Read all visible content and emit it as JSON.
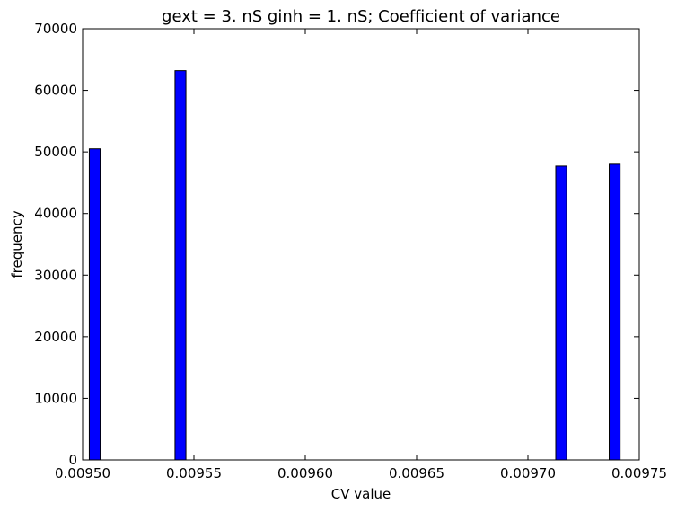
{
  "chart_data": {
    "type": "bar",
    "title": "gext = 3. nS ginh = 1. nS; Coefficient of variance",
    "xlabel": "CV value",
    "ylabel": "frequency",
    "xlim": [
      0.0095,
      0.00975
    ],
    "ylim": [
      0,
      70000
    ],
    "x_ticks": [
      "0.00950",
      "0.00955",
      "0.00960",
      "0.00965",
      "0.00970",
      "0.00975"
    ],
    "y_ticks": [
      "0",
      "10000",
      "20000",
      "30000",
      "40000",
      "50000",
      "60000",
      "70000"
    ],
    "bar_width": 4.9e-06,
    "bins": [
      {
        "x_left": 0.009503,
        "value": 50500
      },
      {
        "x_left": 0.0095415,
        "value": 63200
      },
      {
        "x_left": 0.0097125,
        "value": 47700
      },
      {
        "x_left": 0.0097365,
        "value": 48000
      }
    ],
    "colors": {
      "bar": "#0000ff",
      "edge": "#000000"
    },
    "grid": false
  }
}
